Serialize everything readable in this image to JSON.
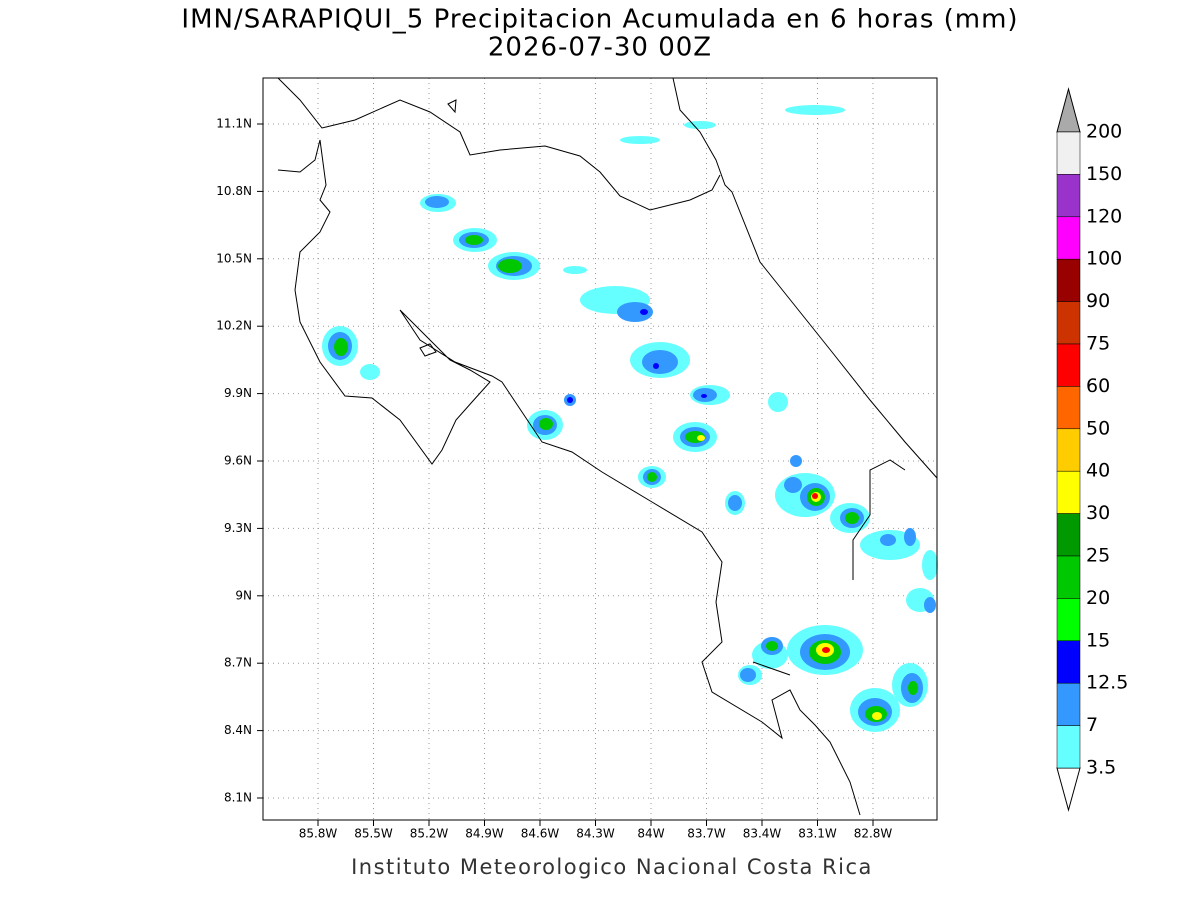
{
  "map": {
    "title": "IMN/SARAPIQUI_5 Precipitacion Acumulada en 6 horas (mm)",
    "subtitle": "2026-07-30 00Z",
    "footer": "Instituto Meteorologico Nacional Costa Rica",
    "lon_ticks": [
      "85.8W",
      "85.5W",
      "85.2W",
      "84.9W",
      "84.6W",
      "84.3W",
      "84W",
      "83.7W",
      "83.4W",
      "83.1W",
      "82.8W"
    ],
    "lat_ticks": [
      "11.1N",
      "10.8N",
      "10.5N",
      "10.2N",
      "9.9N",
      "9.6N",
      "9.3N",
      "9N",
      "8.7N",
      "8.4N",
      "8.1N"
    ],
    "legend": {
      "levels": [
        200,
        150,
        120,
        100,
        90,
        75,
        60,
        50,
        40,
        30,
        25,
        20,
        15,
        12.5,
        7,
        3.5
      ],
      "colors": [
        "#f0f0f0",
        "#9a33cc",
        "#ff00ff",
        "#990000",
        "#cc3300",
        "#ff0000",
        "#ff6600",
        "#ffcc00",
        "#ffff00",
        "#009900",
        "#00c800",
        "#00ff00",
        "#0000ff",
        "#3399ff",
        "#66ffff"
      ],
      "above_color": "#aaaaaa",
      "below_color": "#ffffff"
    }
  }
}
